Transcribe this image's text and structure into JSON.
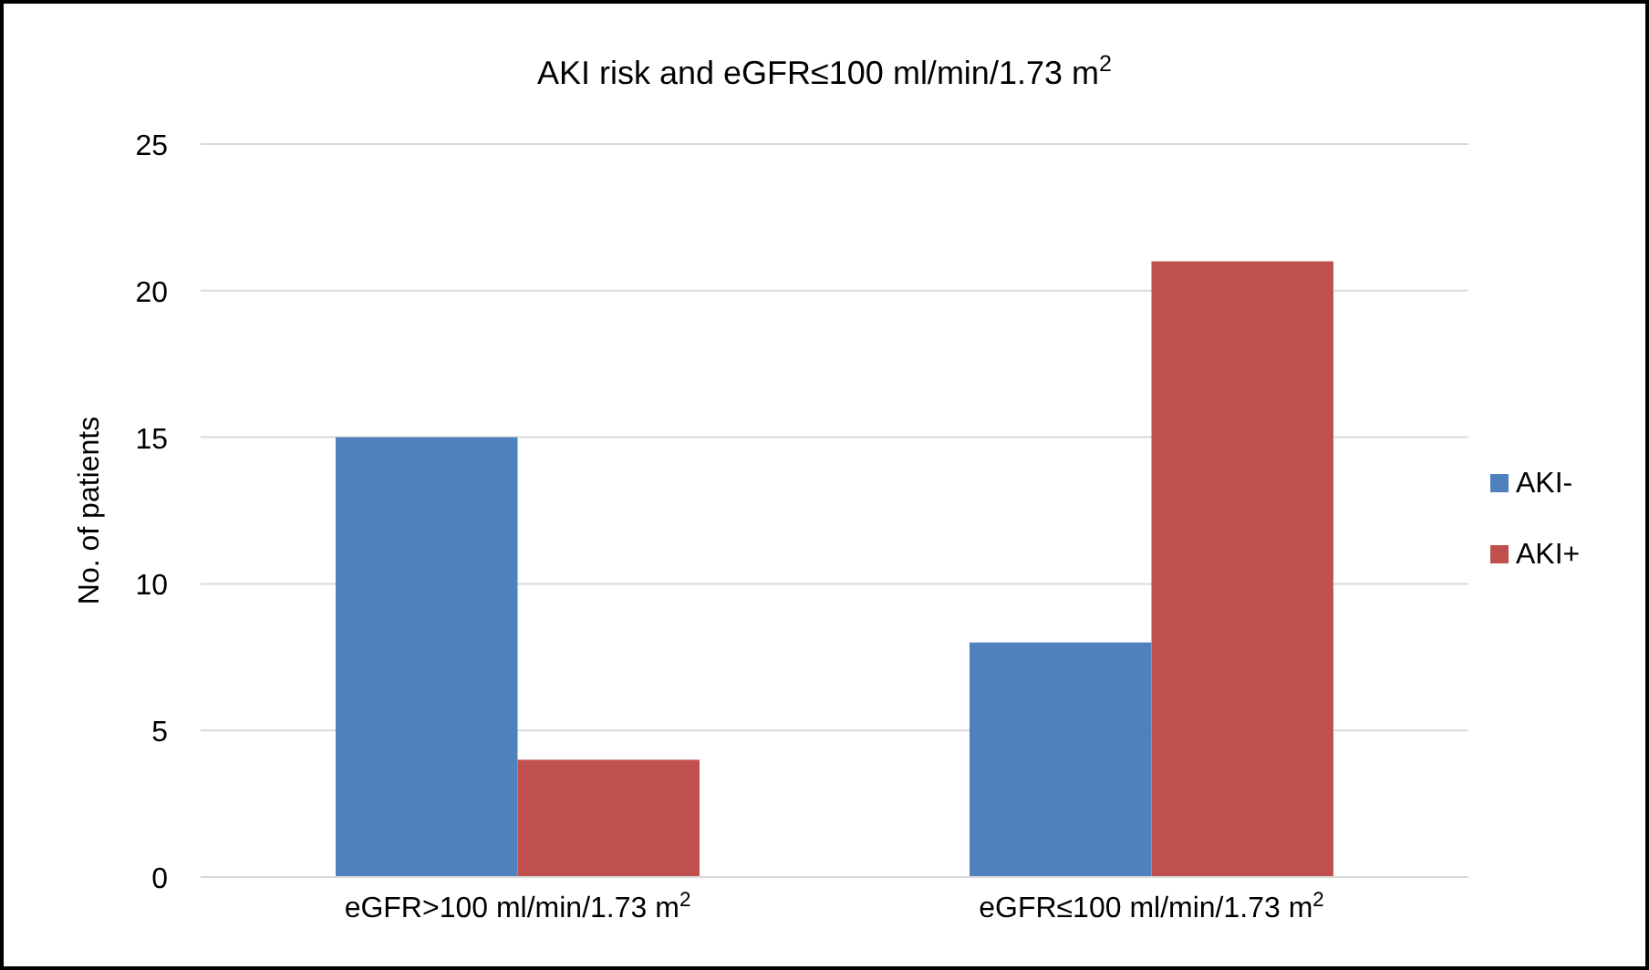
{
  "chart_data": {
    "type": "bar",
    "title": "AKI risk and eGFR≤100 ml/min/1.73 m$^{2}$",
    "ylabel": "No. of patients",
    "categories": [
      "eGFR>100 ml/min/1.73 m$^{2}$",
      "eGFR≤100 ml/min/1.73 m$^{2}$"
    ],
    "series": [
      {
        "name": "AKI-",
        "color": "#4f81bd",
        "values": [
          15,
          8
        ]
      },
      {
        "name": "AKI+",
        "color": "#c0504d",
        "values": [
          4,
          21
        ]
      }
    ],
    "ylim": [
      0,
      25
    ],
    "yticks": [
      0,
      5,
      10,
      15,
      20,
      25
    ],
    "grid": "y",
    "legend": "right"
  }
}
